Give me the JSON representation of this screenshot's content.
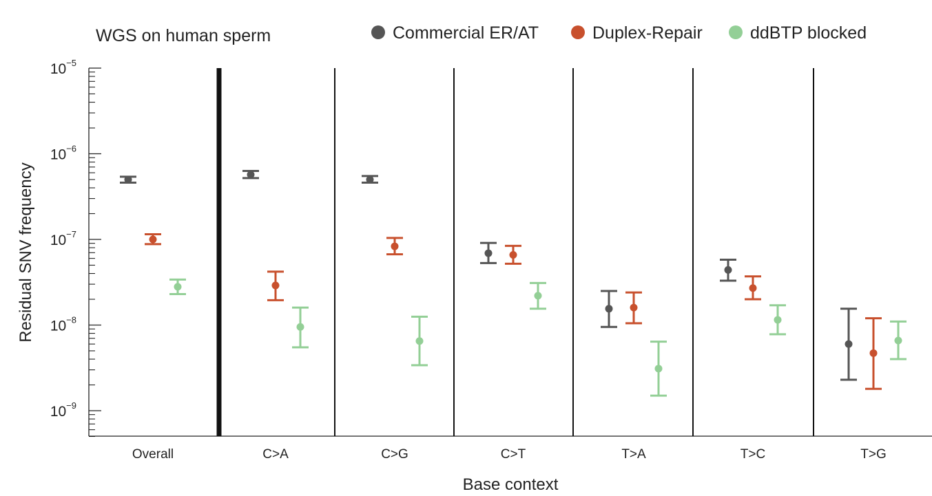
{
  "chart_data": {
    "type": "scatter",
    "title": "WGS on human sperm",
    "xlabel": "Base context",
    "ylabel": "Residual SNV frequency",
    "y_scale": "log",
    "ylim": [
      5e-10,
      1e-05
    ],
    "yticks": [
      {
        "value": 1e-05,
        "base": "10",
        "exponent": "−5"
      },
      {
        "value": 1e-06,
        "base": "10",
        "exponent": "−6"
      },
      {
        "value": 1e-07,
        "base": "10",
        "exponent": "−7"
      },
      {
        "value": 1e-08,
        "base": "10",
        "exponent": "−8"
      },
      {
        "value": 1e-09,
        "base": "10",
        "exponent": "−9"
      }
    ],
    "categories": [
      "Overall",
      "C>A",
      "C>G",
      "C>T",
      "T>A",
      "T>C",
      "T>G"
    ],
    "legend_position": "top-right",
    "series": [
      {
        "name": "Commercial ER/AT",
        "color": "#555555",
        "values": [
          5e-07,
          5.7e-07,
          5e-07,
          6.9e-08,
          1.55e-08,
          4.4e-08,
          6e-09
        ],
        "ci_low": [
          4.6e-07,
          5.2e-07,
          4.6e-07,
          5.3e-08,
          9.5e-09,
          3.3e-08,
          2.3e-09
        ],
        "ci_high": [
          5.4e-07,
          6.3e-07,
          5.5e-07,
          9.1e-08,
          2.5e-08,
          5.8e-08,
          1.55e-08
        ]
      },
      {
        "name": "Duplex-Repair",
        "color": "#c8502d",
        "values": [
          1e-07,
          null,
          8.3e-08,
          6.6e-08,
          1.6e-08,
          2.7e-08,
          4.7e-09
        ],
        "ci_low": [
          8.8e-08,
          null,
          6.7e-08,
          5.2e-08,
          1.05e-08,
          2e-08,
          1.8e-09
        ],
        "ci_high": [
          1.15e-07,
          null,
          1.04e-07,
          8.4e-08,
          2.4e-08,
          3.7e-08,
          1.2e-08
        ]
      },
      {
        "name": "ddBTP blocked",
        "color": "#93cf96",
        "values": [
          2.8e-08,
          9.5e-09,
          6.5e-09,
          2.2e-08,
          3.1e-09,
          1.15e-08,
          6.6e-09
        ],
        "ci_low": [
          2.3e-08,
          5.5e-09,
          3.4e-09,
          1.55e-08,
          1.5e-09,
          7.8e-09,
          4e-09
        ],
        "ci_high": [
          3.4e-08,
          1.6e-08,
          1.25e-08,
          3.1e-08,
          6.4e-09,
          1.7e-08,
          1.1e-08
        ]
      }
    ],
    "extra_points": [
      {
        "series": "Duplex-Repair",
        "category": "C>A",
        "value": 2.9e-08,
        "ci_low": 1.95e-08,
        "ci_high": 4.2e-08
      }
    ]
  }
}
